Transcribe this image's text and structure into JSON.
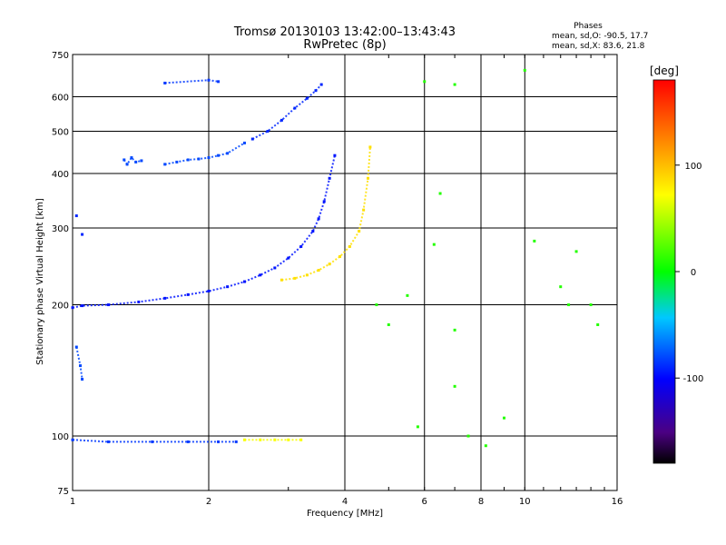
{
  "chart_data": {
    "type": "scatter",
    "title": "Tromsø 20130103 13:42:00–13:43:43",
    "subtitle": "RwPretec (8p)",
    "stats_heading": "Phases",
    "stats_lines": [
      "mean, sd,O: -90.5, 17.7",
      "mean, sd,X:  83.6, 21.8"
    ],
    "xlabel": "Frequency [MHz]",
    "ylabel": "Stationary phase Virtual Height [km]",
    "x_scale": "log",
    "y_scale": "log",
    "xlim": [
      1,
      16
    ],
    "ylim": [
      75,
      750
    ],
    "xticks": [
      1,
      2,
      4,
      6,
      8,
      10,
      16
    ],
    "yticks": [
      75,
      100,
      200,
      300,
      400,
      500,
      600,
      750
    ],
    "xgrid": [
      2,
      4,
      6,
      8,
      10
    ],
    "ygrid": [
      100,
      200,
      300,
      400,
      500,
      600
    ],
    "grid": true,
    "colorbar": {
      "label": "[deg]",
      "ticks": [
        -100,
        0,
        100
      ],
      "range": [
        -180,
        180
      ],
      "colormap": "rainbow",
      "placement": "right"
    },
    "series": [
      {
        "name": "",
        "note": "O-mode traces (phase ~ -90 deg, blue/purple)",
        "segments": [
          {
            "x": [
              1.0,
              1.05,
              1.2,
              1.4,
              1.6,
              1.8,
              2.0,
              2.2,
              2.4,
              2.6,
              2.8,
              3.0,
              3.2,
              3.4,
              3.5,
              3.6,
              3.7,
              3.8
            ],
            "y": [
              197,
              199,
              200,
              203,
              207,
              211,
              215,
              220,
              226,
              234,
              243,
              256,
              272,
              295,
              315,
              345,
              390,
              440
            ],
            "phase": -95
          },
          {
            "x": [
              1.3,
              1.32,
              1.35,
              1.38,
              1.42
            ],
            "y": [
              430,
              420,
              435,
              425,
              428
            ],
            "phase": -80
          },
          {
            "x": [
              1.6,
              1.7,
              1.8,
              1.9,
              2.0,
              2.1,
              2.2,
              2.4
            ],
            "y": [
              420,
              425,
              430,
              432,
              435,
              440,
              445,
              470
            ],
            "phase": -80
          },
          {
            "x": [
              2.5,
              2.7,
              2.9,
              3.1,
              3.3,
              3.45,
              3.55
            ],
            "y": [
              480,
              500,
              530,
              565,
              595,
              620,
              640
            ],
            "phase": -90
          },
          {
            "x": [
              1.0,
              1.2,
              1.5,
              1.8,
              2.1,
              2.3
            ],
            "y": [
              98,
              97,
              97,
              97,
              97,
              97
            ],
            "phase": -85
          },
          {
            "x": [
              1.02,
              1.05
            ],
            "y": [
              320,
              290
            ],
            "phase": -90
          },
          {
            "x": [
              1.02,
              1.04,
              1.05
            ],
            "y": [
              160,
              145,
              135
            ],
            "phase": -80
          },
          {
            "x": [
              1.6,
              2.0,
              2.1
            ],
            "y": [
              645,
              655,
              650
            ],
            "phase": -85
          }
        ]
      },
      {
        "name": "",
        "note": "X-mode traces (phase ~ +80 deg, green/yellow)",
        "segments": [
          {
            "x": [
              2.9,
              3.1,
              3.3,
              3.5,
              3.7,
              3.9,
              4.1,
              4.3,
              4.4,
              4.5,
              4.55
            ],
            "y": [
              228,
              230,
              234,
              240,
              248,
              258,
              272,
              295,
              330,
              390,
              460
            ],
            "phase": 85
          },
          {
            "x": [
              2.4,
              2.6,
              2.8,
              3.0,
              3.2
            ],
            "y": [
              98,
              98,
              98,
              98,
              98
            ],
            "phase": 70
          }
        ]
      },
      {
        "name": "",
        "note": "scattered points",
        "segments": [
          {
            "x": [
              4.7,
              5.0,
              5.8,
              6.3,
              6.5,
              7.0,
              7.0,
              7.5,
              8.2,
              9.0,
              10.0,
              10.5,
              12.0,
              12.5,
              14.5,
              14.0,
              13.0,
              6.0,
              7.0,
              5.5
            ],
            "y": [
              200,
              180,
              105,
              275,
              360,
              175,
              130,
              100,
              95,
              110,
              690,
              280,
              220,
              200,
              180,
              200,
              265,
              650,
              640,
              210
            ],
            "phase": 10
          }
        ]
      }
    ]
  }
}
